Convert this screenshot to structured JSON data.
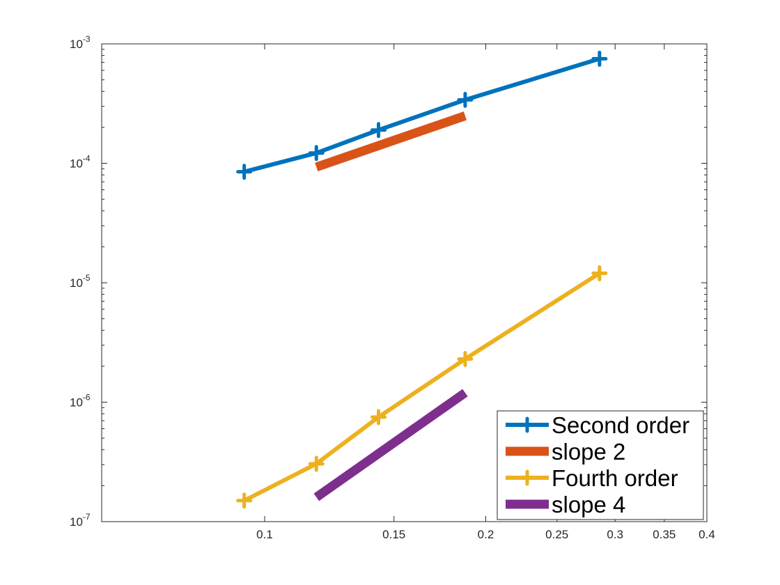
{
  "chart_data": {
    "type": "line",
    "title": "",
    "xlabel": "",
    "ylabel": "",
    "xscale": "log",
    "yscale": "log",
    "xlim": [
      0.06,
      0.4
    ],
    "ylim": [
      1e-07,
      0.001
    ],
    "grid": false,
    "legend_position": "bottom-right",
    "x_ticks": [
      {
        "value": 0.1,
        "label": "0.1"
      },
      {
        "value": 0.15,
        "label": "0.15"
      },
      {
        "value": 0.2,
        "label": "0.2"
      },
      {
        "value": 0.25,
        "label": "0.25"
      },
      {
        "value": 0.3,
        "label": "0.3"
      },
      {
        "value": 0.35,
        "label": "0.35"
      },
      {
        "value": 0.4,
        "label": "0.4"
      }
    ],
    "y_ticks": [
      {
        "value": 1e-07,
        "base": "10",
        "exp": "-7"
      },
      {
        "value": 1e-06,
        "base": "10",
        "exp": "-6"
      },
      {
        "value": 1e-05,
        "base": "10",
        "exp": "-5"
      },
      {
        "value": 0.0001,
        "base": "10",
        "exp": "-4"
      },
      {
        "value": 0.001,
        "base": "10",
        "exp": "-3"
      }
    ],
    "series": [
      {
        "name": "Second order",
        "color": "#0072BD",
        "marker": "plus",
        "line_style": "line-with-markers",
        "x": [
          0.0938,
          0.1176,
          0.1429,
          0.1875,
          0.2857
        ],
        "y": [
          8.5e-05,
          0.000122,
          0.00019,
          0.00034,
          0.00075
        ]
      },
      {
        "name": "slope 2",
        "color": "#D95319",
        "marker": "none",
        "line_style": "thick",
        "x": [
          0.1176,
          0.1875
        ],
        "y": [
          9.3e-05,
          0.00025
        ]
      },
      {
        "name": "Fourth order",
        "color": "#EDB120",
        "marker": "plus",
        "line_style": "line-with-markers",
        "x": [
          0.0938,
          0.1176,
          0.1429,
          0.1875,
          0.2857
        ],
        "y": [
          1.5e-07,
          3.05e-07,
          7.5e-07,
          2.3e-06,
          1.2e-05
        ]
      },
      {
        "name": "slope 4",
        "color": "#7E2F8E",
        "marker": "none",
        "line_style": "thick",
        "x": [
          0.1176,
          0.1875
        ],
        "y": [
          1.6e-07,
          1.2e-06
        ]
      }
    ]
  }
}
